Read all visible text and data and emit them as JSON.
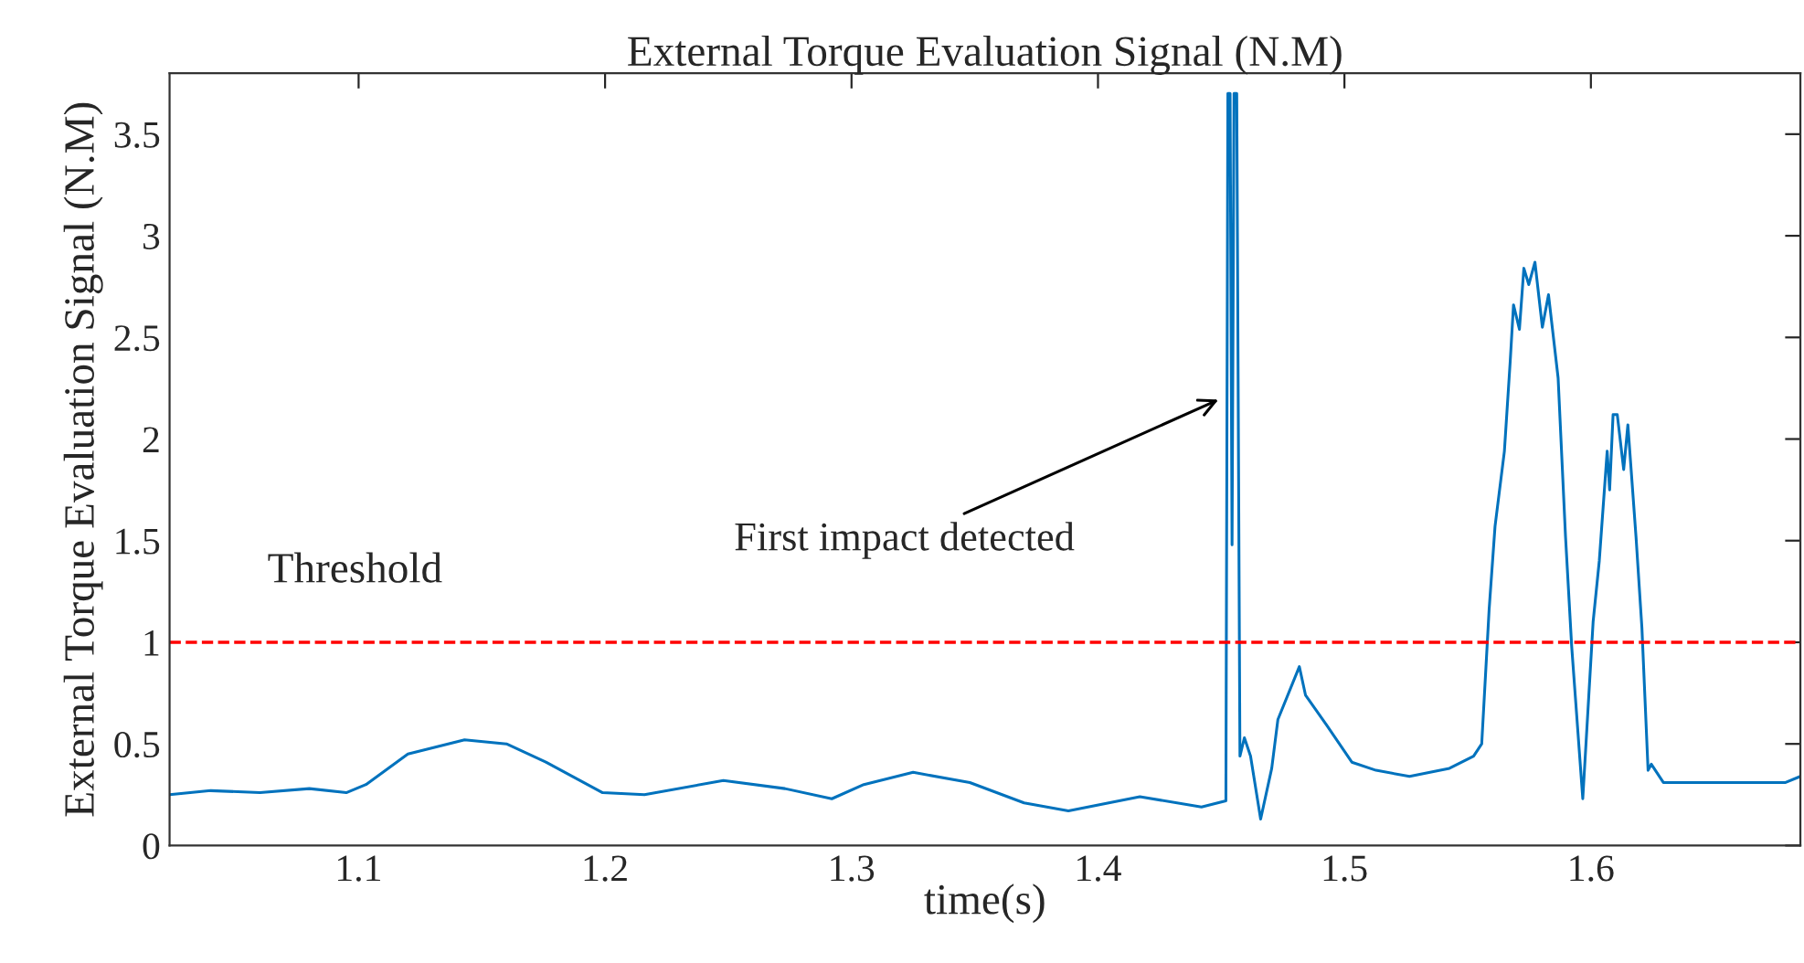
{
  "chart_data": {
    "type": "line",
    "title": "External Torque Evaluation Signal (N.M)",
    "xlabel": "time(s)",
    "ylabel": "External Torque Evaluation Signal (N.M)",
    "series": [
      {
        "color": "#0072bd",
        "x": [
          1.0233,
          1.04,
          1.06,
          1.08,
          1.095,
          1.103,
          1.12,
          1.143,
          1.16,
          1.176,
          1.199,
          1.216,
          1.248,
          1.273,
          1.292,
          1.305,
          1.325,
          1.348,
          1.37,
          1.388,
          1.417,
          1.442,
          1.4519,
          1.4527,
          1.4536,
          1.4544,
          1.4552,
          1.4563,
          1.4576,
          1.4594,
          1.4619,
          1.466,
          1.4705,
          1.473,
          1.4817,
          1.4842,
          1.4929,
          1.503,
          1.5128,
          1.5264,
          1.5426,
          1.5524,
          1.5557,
          1.5587,
          1.5611,
          1.5649,
          1.5673,
          1.5686,
          1.571,
          1.5728,
          1.5748,
          1.5773,
          1.5803,
          1.5828,
          1.5867,
          1.5897,
          1.5922,
          1.5967,
          1.6009,
          1.6034,
          1.6066,
          1.6076,
          1.609,
          1.6107,
          1.6133,
          1.615,
          1.6183,
          1.6207,
          1.6232,
          1.6245,
          1.6294,
          1.6542,
          1.679,
          1.685
        ],
        "values": [
          0.25,
          0.27,
          0.26,
          0.28,
          0.26,
          0.3,
          0.45,
          0.52,
          0.5,
          0.41,
          0.26,
          0.25,
          0.32,
          0.28,
          0.23,
          0.3,
          0.36,
          0.31,
          0.21,
          0.17,
          0.24,
          0.19,
          0.22,
          3.7,
          3.7,
          1.48,
          3.7,
          3.7,
          0.44,
          0.53,
          0.44,
          0.13,
          0.38,
          0.62,
          0.88,
          0.74,
          0.59,
          0.41,
          0.37,
          0.34,
          0.38,
          0.44,
          0.5,
          1.16,
          1.57,
          1.94,
          2.39,
          2.66,
          2.54,
          2.84,
          2.76,
          2.87,
          2.55,
          2.71,
          2.3,
          1.52,
          0.98,
          0.23,
          1.1,
          1.4,
          1.94,
          1.75,
          2.12,
          2.12,
          1.85,
          2.07,
          1.52,
          1.07,
          0.37,
          0.4,
          0.31,
          0.31,
          0.31,
          0.34
        ]
      }
    ],
    "xlim": [
      1.0233,
      1.685
    ],
    "xticks": [
      1.1,
      1.2,
      1.3,
      1.4,
      1.5,
      1.6
    ],
    "ylim": [
      0,
      3.8
    ],
    "yticks": [
      0,
      0.5,
      1,
      1.5,
      2,
      2.5,
      3,
      3.5
    ],
    "ref_lines": [
      {
        "axis": "y",
        "value": 1,
        "label": "Threshold",
        "color": "#ff0000",
        "line_style": "dashed"
      }
    ],
    "annotations": [
      "First impact detected"
    ],
    "grid": false
  }
}
